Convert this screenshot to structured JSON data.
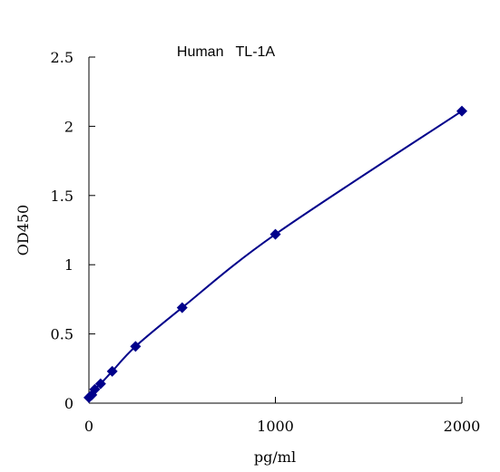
{
  "chart_data": {
    "type": "scatter",
    "title": "Human   TL-1A",
    "xlabel": "pg/ml",
    "ylabel": "OD450",
    "xlim": [
      0,
      2000
    ],
    "ylim": [
      0,
      2.5
    ],
    "xticks": [
      "0",
      "1000",
      "2000"
    ],
    "yticks": [
      "0",
      "0.5",
      "1",
      "1.5",
      "2",
      "2.5"
    ],
    "grid": false,
    "series": [
      {
        "x": [
          0,
          15.6,
          31.25,
          62.5,
          125,
          250,
          500,
          1000,
          2000
        ],
        "y": [
          0.04,
          0.06,
          0.1,
          0.14,
          0.23,
          0.41,
          0.69,
          1.22,
          2.11
        ],
        "color": "#00008B",
        "marker": "diamond",
        "line": "smooth"
      }
    ]
  }
}
